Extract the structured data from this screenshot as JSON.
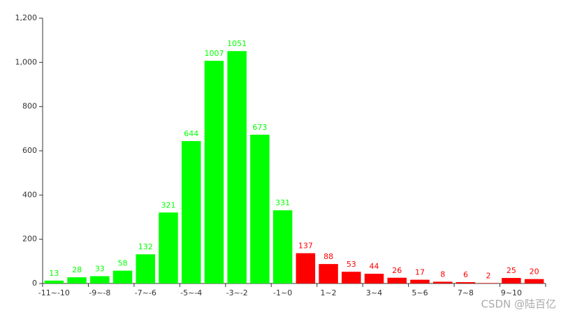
{
  "chart_data": {
    "type": "bar",
    "categories": [
      "-11~-10",
      null,
      "-9~-8",
      null,
      "-7~-6",
      null,
      "-5~-4",
      null,
      "-3~-2",
      null,
      "-1~0",
      null,
      "1~2",
      null,
      "3~4",
      null,
      "5~6",
      null,
      "7~8",
      null,
      "9~10",
      null
    ],
    "values": [
      13,
      28,
      33,
      58,
      132,
      321,
      644,
      1007,
      1051,
      673,
      331,
      137,
      88,
      53,
      44,
      26,
      17,
      8,
      6,
      2,
      25,
      20
    ],
    "colors": [
      "#00ff00",
      "#00ff00",
      "#00ff00",
      "#00ff00",
      "#00ff00",
      "#00ff00",
      "#00ff00",
      "#00ff00",
      "#00ff00",
      "#00ff00",
      "#00ff00",
      "#ff0000",
      "#ff0000",
      "#ff0000",
      "#ff0000",
      "#ff0000",
      "#ff0000",
      "#ff0000",
      "#ff0000",
      "#ff0000",
      "#ff0000",
      "#ff0000"
    ],
    "ylim": [
      0,
      1200
    ],
    "yticks": [
      0,
      200,
      400,
      600,
      800,
      {
        "value": 1000,
        "label": "1,000"
      },
      {
        "value": 1200,
        "label": "1,200"
      }
    ],
    "grid": false,
    "watermark": "CSDN @陆百亿"
  }
}
